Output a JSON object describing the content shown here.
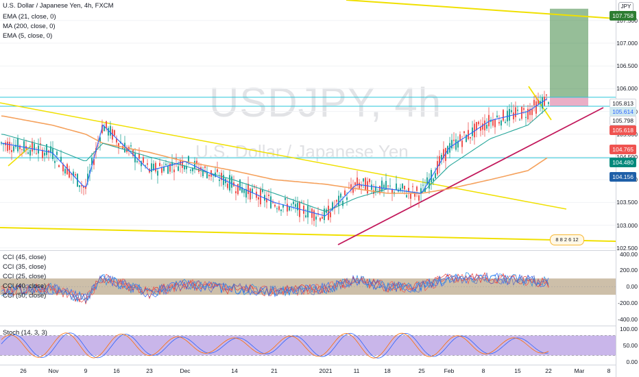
{
  "legend": {
    "title": "U.S. Dollar / Japanese Yen, 4h, FXCM",
    "indicators": [
      "EMA (21, close, 0)",
      "MA (200, close, 0)",
      "EMA (5, close, 0)"
    ]
  },
  "watermark": {
    "symbol": "USDJPY, 4h",
    "name": "U.S. Dollar / Japanese Yen"
  },
  "currency_button": "JPY",
  "price_axis": {
    "ticks": [
      "107.500",
      "107.000",
      "106.500",
      "106.000",
      "105.500",
      "105.000",
      "104.500",
      "104.000",
      "103.500",
      "103.000",
      "102.500"
    ],
    "badges": [
      {
        "label": "107.758",
        "bg": "#2e7d32",
        "fg": "#ffffff"
      },
      {
        "label": "105.813",
        "bg": "#ffffff",
        "fg": "#131722"
      },
      {
        "label": "105.614",
        "bg": "#d0e9f0",
        "fg": "#2962ff"
      },
      {
        "label": "105.798",
        "bg": "#ffffff",
        "fg": "#131722"
      },
      {
        "label": "105.618",
        "bg": "#ef5350",
        "fg": "#ffffff"
      },
      {
        "label": "104.765",
        "bg": "#ef5350",
        "fg": "#ffffff"
      },
      {
        "label": "104.480",
        "bg": "#00897b",
        "fg": "#ffffff"
      },
      {
        "label": "104.156",
        "bg": "#1e5fa8",
        "fg": "#ffffff"
      }
    ]
  },
  "cci_panel": {
    "labels": [
      "CCI (45, close)",
      "CCI (35, close)",
      "CCI (25, close)",
      "CCI (40, close)",
      "CCI (50, close)"
    ],
    "ticks": [
      "400.00",
      "200.00",
      "0.00",
      "-200.00",
      "-400.00"
    ]
  },
  "stoch_panel": {
    "label": "Stoch (14, 3, 3)",
    "ticks": [
      "100.00",
      "50.00",
      "0.00"
    ]
  },
  "time_axis": [
    "26",
    "Nov",
    "9",
    "16",
    "23",
    "Dec",
    "14",
    "21",
    "2021",
    "11",
    "18",
    "25",
    "Feb",
    "8",
    "15",
    "22",
    "Mar",
    "8"
  ],
  "events": "8 8 2 6 12",
  "colors": {
    "ema21": "#26a69a",
    "ma200": "#f5a15c",
    "ema5": "#2962ff",
    "trend": "#f0e000",
    "support": "#c2185b",
    "hline": "#26c6da",
    "up": "#26a69a",
    "down": "#ef5350",
    "cci_band": "#a48a62",
    "stoch_band": "#9c7ad8"
  },
  "chart_data": {
    "type": "line",
    "title": "U.S. Dollar / Japanese Yen, 4h, FXCM",
    "ylim": [
      102.5,
      107.9
    ],
    "x": [
      "26",
      "Nov",
      "9",
      "16",
      "23",
      "Dec",
      "14",
      "21",
      "2021",
      "11",
      "18",
      "25",
      "Feb",
      "8",
      "15",
      "22"
    ],
    "series": [
      {
        "name": "EMA (5, close, 0)",
        "values": [
          104.8,
          104.6,
          103.8,
          105.2,
          104.2,
          104.4,
          103.9,
          103.5,
          103.2,
          103.9,
          103.8,
          103.7,
          104.7,
          105.3,
          105.5,
          105.8
        ]
      },
      {
        "name": "EMA (21, close, 0)",
        "values": [
          105.0,
          104.7,
          104.4,
          104.8,
          104.5,
          104.3,
          104.0,
          103.7,
          103.3,
          103.6,
          103.8,
          103.7,
          104.3,
          104.9,
          105.2,
          105.6
        ]
      },
      {
        "name": "MA (200, close, 0)",
        "values": [
          105.4,
          105.2,
          105.0,
          104.8,
          104.6,
          104.4,
          104.2,
          104.0,
          103.9,
          103.8,
          103.7,
          103.7,
          103.8,
          104.0,
          104.2,
          104.5
        ]
      }
    ],
    "levels": [
      105.813,
      105.614,
      104.48
    ],
    "target_box": [
      105.813,
      107.758
    ],
    "stop_box": [
      105.614,
      105.813
    ]
  }
}
